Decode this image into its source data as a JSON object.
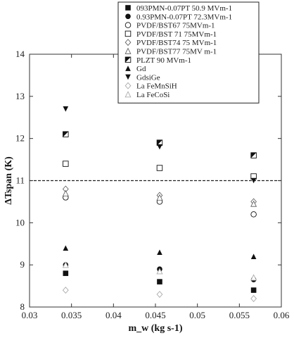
{
  "chart_data": {
    "type": "scatter",
    "title": "",
    "xlabel": "m_w (kg s-1)",
    "ylabel": "ΔTspan (K)",
    "xlim": [
      0.03,
      0.06
    ],
    "ylim": [
      8,
      14
    ],
    "xticks": [
      "0.03",
      "0.035",
      "0.04",
      "0.045",
      "0.05",
      "0.055",
      "0.06"
    ],
    "yticks": [
      "8",
      "9",
      "10",
      "11",
      "12",
      "13",
      "14"
    ],
    "grid": false,
    "reference_line_y": 11,
    "legend_position": "top-right",
    "series": [
      {
        "name": "093PMN-0.07PT 50.9 MVm-1",
        "marker": "square-filled",
        "points": [
          {
            "x": 0.0343,
            "y": 8.8
          },
          {
            "x": 0.0455,
            "y": 8.6
          },
          {
            "x": 0.0567,
            "y": 8.4
          }
        ]
      },
      {
        "name": "0.93PMN-0.07PT 72.3MVm-1",
        "marker": "circle-filled",
        "points": [
          {
            "x": 0.0343,
            "y": 9.0
          },
          {
            "x": 0.0455,
            "y": 8.9
          },
          {
            "x": 0.0567,
            "y": 8.65
          }
        ]
      },
      {
        "name": "PVDF/BST67 75MVm-1",
        "marker": "circle-open",
        "points": [
          {
            "x": 0.0343,
            "y": 10.6
          },
          {
            "x": 0.0455,
            "y": 10.5
          },
          {
            "x": 0.0567,
            "y": 10.2
          }
        ]
      },
      {
        "name": "PVDF/BST 71 75MVm-1",
        "marker": "square-open",
        "points": [
          {
            "x": 0.0343,
            "y": 11.4
          },
          {
            "x": 0.0455,
            "y": 11.3
          },
          {
            "x": 0.0567,
            "y": 11.1
          }
        ]
      },
      {
        "name": "PVDF/BST74 75 MVm-1",
        "marker": "diamond-open",
        "points": [
          {
            "x": 0.0343,
            "y": 10.8
          },
          {
            "x": 0.0455,
            "y": 10.65
          },
          {
            "x": 0.0567,
            "y": 10.5
          }
        ]
      },
      {
        "name": "PVDF/BST77 75MV m-1",
        "marker": "triangle-open",
        "points": [
          {
            "x": 0.0343,
            "y": 10.7
          },
          {
            "x": 0.0455,
            "y": 10.6
          },
          {
            "x": 0.0567,
            "y": 10.45
          }
        ]
      },
      {
        "name": "PLZT 90 MVm-1",
        "marker": "square-half",
        "points": [
          {
            "x": 0.0343,
            "y": 12.1
          },
          {
            "x": 0.0455,
            "y": 11.9
          },
          {
            "x": 0.0567,
            "y": 11.6
          }
        ]
      },
      {
        "name": "Gd",
        "marker": "triangle-filled",
        "points": [
          {
            "x": 0.0343,
            "y": 9.4
          },
          {
            "x": 0.0455,
            "y": 9.3
          },
          {
            "x": 0.0567,
            "y": 9.2
          }
        ]
      },
      {
        "name": "GdsiGe",
        "marker": "triangle-down-filled",
        "points": [
          {
            "x": 0.0343,
            "y": 12.7
          },
          {
            "x": 0.0455,
            "y": 11.8
          },
          {
            "x": 0.0567,
            "y": 11.0
          }
        ]
      },
      {
        "name": "La FeMnSiH",
        "marker": "diamond-light",
        "points": [
          {
            "x": 0.0343,
            "y": 8.4
          },
          {
            "x": 0.0455,
            "y": 8.3
          },
          {
            "x": 0.0567,
            "y": 8.2
          }
        ]
      },
      {
        "name": "La FeCoSi",
        "marker": "triangle-light",
        "points": [
          {
            "x": 0.0343,
            "y": 9.0
          },
          {
            "x": 0.0455,
            "y": 8.85
          },
          {
            "x": 0.0567,
            "y": 8.7
          }
        ]
      }
    ]
  }
}
